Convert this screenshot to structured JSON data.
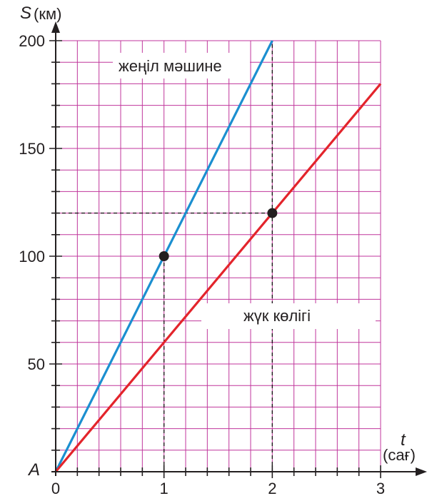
{
  "chart_data": {
    "type": "line",
    "grid": true,
    "xlim": [
      0,
      3
    ],
    "ylim": [
      0,
      200
    ],
    "x_minor_step": 0.2,
    "y_minor_step": 10,
    "x_ticks": [
      0,
      1,
      2,
      3
    ],
    "y_ticks": [
      50,
      100,
      150,
      200
    ],
    "x_tick_labels": [
      "0",
      "1",
      "2",
      "3"
    ],
    "y_tick_labels": [
      "50",
      "100",
      "150",
      "200"
    ],
    "xlabel": "t",
    "xlabel_unit": "(сағ)",
    "ylabel": "S",
    "ylabel_unit": "(км)",
    "origin_label": "A",
    "series": [
      {
        "name": "жеңіл мәшине",
        "color": "#1b8fd0",
        "x": [
          0,
          2
        ],
        "y": [
          0,
          200
        ]
      },
      {
        "name": "жүк көлігі",
        "color": "#e3242b",
        "x": [
          0,
          3
        ],
        "y": [
          0,
          180
        ]
      }
    ],
    "marked_points": [
      {
        "x": 1,
        "y": 100
      },
      {
        "x": 2,
        "y": 120
      }
    ],
    "guide_lines": [
      {
        "from": [
          1,
          0
        ],
        "to": [
          1,
          100
        ]
      },
      {
        "from": [
          2,
          0
        ],
        "to": [
          2,
          200
        ]
      },
      {
        "from": [
          0,
          120
        ],
        "to": [
          2,
          120
        ]
      }
    ],
    "colors": {
      "grid": "#c0369c",
      "axis": "#231f20",
      "point": "#231f20"
    }
  }
}
